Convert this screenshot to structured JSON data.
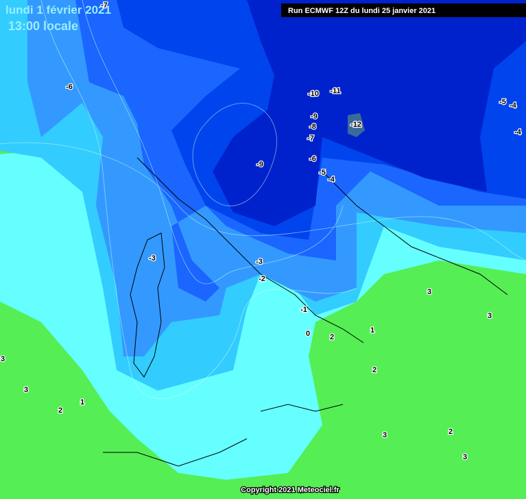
{
  "header": {
    "title_line1": "lundi 1 février 2021",
    "title_line2": "13:00 locale"
  },
  "run_info": "Run ECMWF 12Z du lundi 25 janvier 2021",
  "contour_labels": [
    -7,
    -6,
    -10,
    -11,
    -12,
    -9,
    -8,
    -7,
    -6,
    -5,
    -4,
    -9,
    -5,
    -4,
    -4,
    -3,
    -3,
    -2,
    -1,
    0,
    2,
    1,
    2,
    3,
    3,
    3,
    3,
    1,
    2,
    3,
    2,
    3
  ],
  "copyright": "Copyright 2021 Meteociel.fr"
}
